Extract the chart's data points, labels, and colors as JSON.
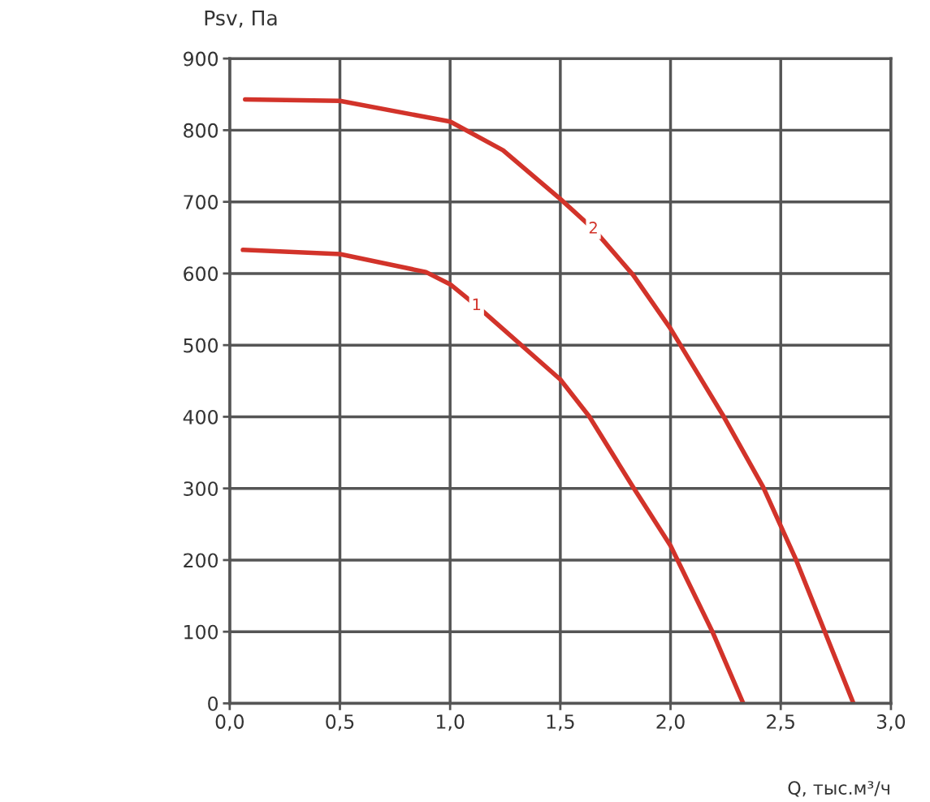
{
  "chart_data": {
    "type": "line",
    "xlabel": "Q, тыс.м³/ч",
    "ylabel": "Psv, Па",
    "xlim": [
      0,
      3.0
    ],
    "ylim": [
      0,
      900
    ],
    "xticks": [
      {
        "value": 0,
        "label": "0,0"
      },
      {
        "value": 0.5,
        "label": "0,5"
      },
      {
        "value": 1.0,
        "label": "1,0"
      },
      {
        "value": 1.5,
        "label": "1,5"
      },
      {
        "value": 2.0,
        "label": "2,0"
      },
      {
        "value": 2.5,
        "label": "2,5"
      },
      {
        "value": 3.0,
        "label": "3,0"
      }
    ],
    "yticks": [
      0,
      100,
      200,
      300,
      400,
      500,
      600,
      700,
      800,
      900
    ],
    "grid": true,
    "legend": false,
    "marker": "none",
    "line_style": "solid",
    "series": [
      {
        "name": "1",
        "color": "#d2332a",
        "x": [
          0.06,
          0.5,
          0.89,
          1.0,
          1.12,
          1.5,
          1.63,
          1.83,
          2.0,
          2.19,
          2.33
        ],
        "values": [
          633,
          627,
          602,
          585,
          555,
          452,
          401,
          302,
          220,
          100,
          0
        ]
      },
      {
        "name": "2",
        "color": "#d2332a",
        "x": [
          0.07,
          0.5,
          1.0,
          1.24,
          1.5,
          1.65,
          1.83,
          2.0,
          2.24,
          2.42,
          2.57,
          2.7,
          2.83
        ],
        "values": [
          843,
          841,
          812,
          772,
          704,
          662,
          598,
          523,
          401,
          302,
          200,
          100,
          0
        ]
      }
    ]
  }
}
